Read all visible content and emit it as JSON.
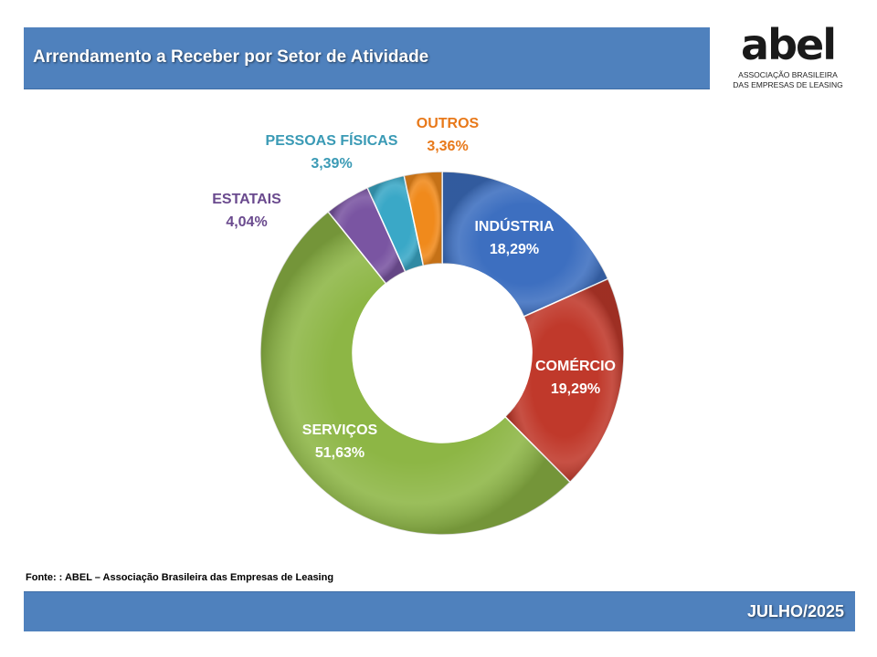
{
  "header": {
    "title": "Arrendamento a Receber por Setor de Atividade"
  },
  "logo": {
    "wordmark": "abel",
    "line1": "ASSOCIAÇÃO BRASILEIRA",
    "line2": "DAS EMPRESAS DE LEASING"
  },
  "source": {
    "text": "Fonte: : ABEL – Associação Brasileira das Empresas de Leasing"
  },
  "footer": {
    "date": "JULHO/2025"
  },
  "colors": {
    "bar_blue": "#4f81bd",
    "industria": "#3d6fc0",
    "comercio": "#c0392b",
    "servicos": "#8db645",
    "estatais": "#7a55a2",
    "pessoas_fisicas": "#3aa8c7",
    "outros": "#f08a1c"
  },
  "chart_data": {
    "type": "pie",
    "subtype": "donut",
    "title": "",
    "slices": [
      {
        "label": "INDÚSTRIA",
        "value_label": "18,29%",
        "value": 18.29,
        "color": "#3d6fc0",
        "label_color": "#ffffff",
        "label_placement": "inside"
      },
      {
        "label": "COMÉRCIO",
        "value_label": "19,29%",
        "value": 19.29,
        "color": "#c0392b",
        "label_color": "#ffffff",
        "label_placement": "inside"
      },
      {
        "label": "SERVIÇOS",
        "value_label": "51,63%",
        "value": 51.63,
        "color": "#8db645",
        "label_color": "#ffffff",
        "label_placement": "inside"
      },
      {
        "label": "ESTATAIS",
        "value_label": "4,04%",
        "value": 4.04,
        "color": "#7a55a2",
        "label_color": "#6a4a8e",
        "label_placement": "outside"
      },
      {
        "label": "PESSOAS FÍSICAS",
        "value_label": "3,39%",
        "value": 3.39,
        "color": "#3aa8c7",
        "label_color": "#3a9ab5",
        "label_placement": "outside"
      },
      {
        "label": "OUTROS",
        "value_label": "3,36%",
        "value": 3.36,
        "color": "#f08a1c",
        "label_color": "#e8791a",
        "label_placement": "outside"
      }
    ],
    "start_angle_deg": 0,
    "direction": "clockwise",
    "legend": "none"
  }
}
